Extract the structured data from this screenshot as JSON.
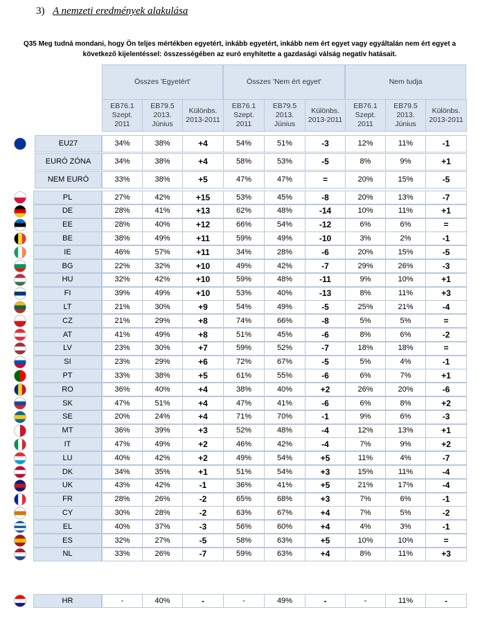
{
  "header": {
    "number": "3)",
    "title": "A nemzeti eredmények alakulása"
  },
  "question": "Q35 Meg tudná mondani, hogy Ön teljes mértékben egyetért, inkább egyetért, inkább nem ért egyet vagy egyáltalán nem ért egyet a következő kijelentéssel: összességében az euró enyhítette a gazdasági válság negatív hatásait.",
  "table": {
    "groups": [
      "Összes 'Egyetért'",
      "Összes 'Nem ért egyet'",
      "Nem tudja"
    ],
    "subheaders": [
      "EB76.1\nSzept.\n2011",
      "EB79.5\n2013.\nJúnius",
      "Különbs.\n2013-2011"
    ],
    "rows": [
      [
        "EU27",
        "34%",
        "38%",
        "+4",
        "54%",
        "51%",
        "-3",
        "12%",
        "11%",
        "-1"
      ],
      [
        "EURÓ ZÓNA",
        "34%",
        "38%",
        "+4",
        "58%",
        "53%",
        "-5",
        "8%",
        "9%",
        "+1"
      ],
      [
        "NEM EURÓ",
        "33%",
        "38%",
        "+5",
        "47%",
        "47%",
        "=",
        "20%",
        "15%",
        "-5"
      ],
      [
        "PL",
        "27%",
        "42%",
        "+15",
        "53%",
        "45%",
        "-8",
        "20%",
        "13%",
        "-7"
      ],
      [
        "DE",
        "28%",
        "41%",
        "+13",
        "62%",
        "48%",
        "-14",
        "10%",
        "11%",
        "+1"
      ],
      [
        "EE",
        "28%",
        "40%",
        "+12",
        "66%",
        "54%",
        "-12",
        "6%",
        "6%",
        "="
      ],
      [
        "BE",
        "38%",
        "49%",
        "+11",
        "59%",
        "49%",
        "-10",
        "3%",
        "2%",
        "-1"
      ],
      [
        "IE",
        "46%",
        "57%",
        "+11",
        "34%",
        "28%",
        "-6",
        "20%",
        "15%",
        "-5"
      ],
      [
        "BG",
        "22%",
        "32%",
        "+10",
        "49%",
        "42%",
        "-7",
        "29%",
        "26%",
        "-3"
      ],
      [
        "HU",
        "32%",
        "42%",
        "+10",
        "59%",
        "48%",
        "-11",
        "9%",
        "10%",
        "+1"
      ],
      [
        "FI",
        "39%",
        "49%",
        "+10",
        "53%",
        "40%",
        "-13",
        "8%",
        "11%",
        "+3"
      ],
      [
        "LT",
        "21%",
        "30%",
        "+9",
        "54%",
        "49%",
        "-5",
        "25%",
        "21%",
        "-4"
      ],
      [
        "CZ",
        "21%",
        "29%",
        "+8",
        "74%",
        "66%",
        "-8",
        "5%",
        "5%",
        "="
      ],
      [
        "AT",
        "41%",
        "49%",
        "+8",
        "51%",
        "45%",
        "-6",
        "8%",
        "6%",
        "-2"
      ],
      [
        "LV",
        "23%",
        "30%",
        "+7",
        "59%",
        "52%",
        "-7",
        "18%",
        "18%",
        "="
      ],
      [
        "SI",
        "23%",
        "29%",
        "+6",
        "72%",
        "67%",
        "-5",
        "5%",
        "4%",
        "-1"
      ],
      [
        "PT",
        "33%",
        "38%",
        "+5",
        "61%",
        "55%",
        "-6",
        "6%",
        "7%",
        "+1"
      ],
      [
        "RO",
        "36%",
        "40%",
        "+4",
        "38%",
        "40%",
        "+2",
        "26%",
        "20%",
        "-6"
      ],
      [
        "SK",
        "47%",
        "51%",
        "+4",
        "47%",
        "41%",
        "-6",
        "6%",
        "8%",
        "+2"
      ],
      [
        "SE",
        "20%",
        "24%",
        "+4",
        "71%",
        "70%",
        "-1",
        "9%",
        "6%",
        "-3"
      ],
      [
        "MT",
        "36%",
        "39%",
        "+3",
        "52%",
        "48%",
        "-4",
        "12%",
        "13%",
        "+1"
      ],
      [
        "IT",
        "47%",
        "49%",
        "+2",
        "46%",
        "42%",
        "-4",
        "7%",
        "9%",
        "+2"
      ],
      [
        "LU",
        "40%",
        "42%",
        "+2",
        "49%",
        "54%",
        "+5",
        "11%",
        "4%",
        "-7"
      ],
      [
        "DK",
        "34%",
        "35%",
        "+1",
        "51%",
        "54%",
        "+3",
        "15%",
        "11%",
        "-4"
      ],
      [
        "UK",
        "43%",
        "42%",
        "-1",
        "36%",
        "41%",
        "+5",
        "21%",
        "17%",
        "-4"
      ],
      [
        "FR",
        "28%",
        "26%",
        "-2",
        "65%",
        "68%",
        "+3",
        "7%",
        "6%",
        "-1"
      ],
      [
        "CY",
        "30%",
        "28%",
        "-2",
        "63%",
        "67%",
        "+4",
        "7%",
        "5%",
        "-2"
      ],
      [
        "EL",
        "40%",
        "37%",
        "-3",
        "56%",
        "60%",
        "+4",
        "4%",
        "3%",
        "-1"
      ],
      [
        "ES",
        "32%",
        "27%",
        "-5",
        "58%",
        "63%",
        "+5",
        "10%",
        "10%",
        "="
      ],
      [
        "NL",
        "33%",
        "26%",
        "-7",
        "59%",
        "63%",
        "+4",
        "8%",
        "11%",
        "+3"
      ],
      [
        "HR",
        "-",
        "40%",
        "-",
        "-",
        "49%",
        "-",
        "-",
        "11%",
        "-"
      ]
    ]
  }
}
